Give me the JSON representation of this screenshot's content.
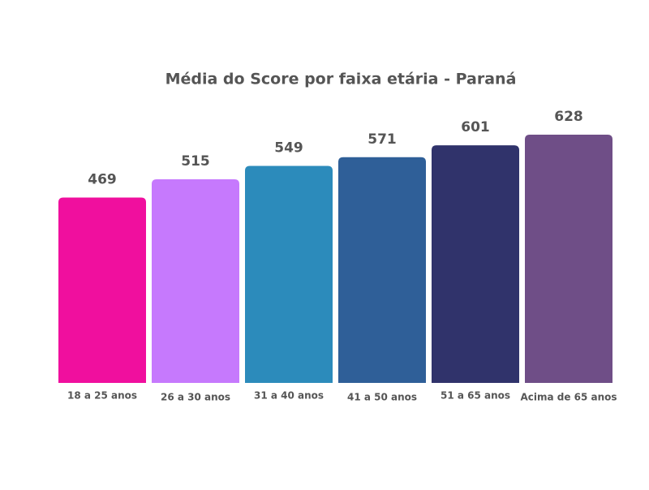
{
  "chart_data": {
    "type": "bar",
    "title": "Média do Score por faixa etária - Paraná",
    "categories": [
      "18 a 25 anos",
      "26 a 30 anos",
      "31 a 40 anos",
      "41 a 50 anos",
      "51 a 65 anos",
      "Acima de 65 anos"
    ],
    "values": [
      469,
      515,
      549,
      571,
      601,
      628
    ],
    "colors": [
      "#f00f9e",
      "#c679fd",
      "#2c8bbb",
      "#2f5f98",
      "#30336b",
      "#6f4e87"
    ]
  }
}
